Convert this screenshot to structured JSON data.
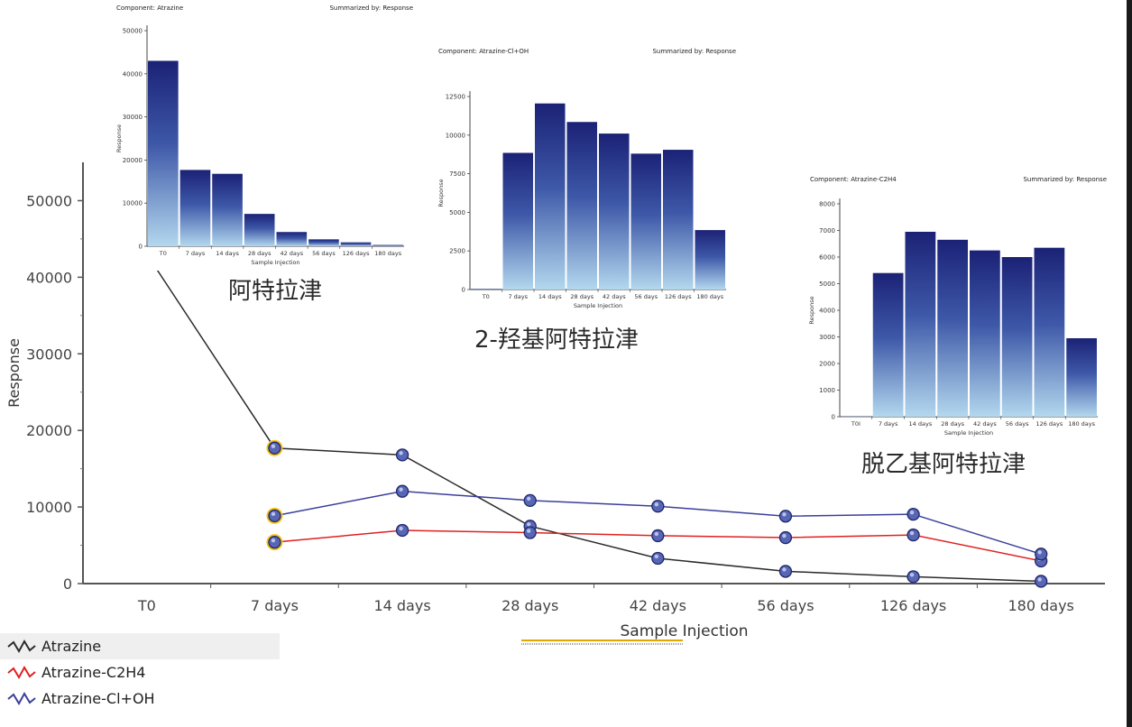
{
  "chart_data": [
    {
      "type": "line",
      "xlabel": "Sample Injection",
      "ylabel": "Response",
      "ylim": [
        0,
        55000
      ],
      "yticks": [
        0,
        10000,
        20000,
        30000,
        40000,
        50000
      ],
      "categories": [
        "T0",
        "7 days",
        "14 days",
        "28 days",
        "42 days",
        "56 days",
        "126 days",
        "180 days"
      ],
      "series": [
        {
          "name": "Atrazine",
          "color": "#2b2b2b",
          "values": [
            43000,
            17700,
            16800,
            7500,
            3300,
            1600,
            900,
            300
          ]
        },
        {
          "name": "Atrazine-C2H4",
          "color": "#e02020",
          "values": [
            null,
            5400,
            6950,
            6650,
            6250,
            6000,
            6350,
            2950
          ]
        },
        {
          "name": "Atrazine-Cl+OH",
          "color": "#3a3f9a",
          "values": [
            null,
            8850,
            12050,
            10850,
            10100,
            8800,
            9050,
            3850
          ]
        }
      ],
      "highlighted_category": "7 days",
      "legend": "bottom-left",
      "grid": false
    },
    {
      "type": "bar",
      "component_label": "Component: Atrazine",
      "summary_label": "Summarized by: Response",
      "xlabel": "Sample Injection",
      "ylabel": "Response",
      "ylim": [
        0,
        50000
      ],
      "yticks": [
        0,
        10000,
        20000,
        30000,
        40000,
        50000
      ],
      "categories": [
        "T0",
        "7 days",
        "14 days",
        "28 days",
        "42 days",
        "56 days",
        "126 days",
        "180 days"
      ],
      "values": [
        43000,
        17700,
        16800,
        7500,
        3300,
        1600,
        900,
        300
      ],
      "caption": "阿特拉津"
    },
    {
      "type": "bar",
      "component_label": "Component: Atrazine-Cl+OH",
      "summary_label": "Summarized by: Response",
      "xlabel": "Sample Injection",
      "ylabel": "Response",
      "ylim": [
        0,
        12500
      ],
      "yticks": [
        0,
        2500,
        5000,
        7500,
        10000,
        12500
      ],
      "categories": [
        "T0",
        "7 days",
        "14 days",
        "28 days",
        "42 days",
        "56 days",
        "126 days",
        "180 days"
      ],
      "values": [
        50,
        8850,
        12050,
        10850,
        10100,
        8800,
        9050,
        3850
      ],
      "caption": "2-羟基阿特拉津"
    },
    {
      "type": "bar",
      "component_label": "Component: Atrazine-C2H4",
      "summary_label": "Summarized by: Response",
      "xlabel": "Sample Injection",
      "ylabel": "Response",
      "ylim": [
        0,
        8000
      ],
      "yticks": [
        0,
        1000,
        2000,
        3000,
        4000,
        5000,
        6000,
        7000,
        8000
      ],
      "categories": [
        "T0I",
        "7 days",
        "14 days",
        "28 days",
        "42 days",
        "56 days",
        "126 days",
        "180 days"
      ],
      "values": [
        0,
        5400,
        6950,
        6650,
        6250,
        6000,
        6350,
        2950
      ],
      "caption": "脱乙基阿特拉津"
    }
  ],
  "legend": {
    "items": [
      {
        "label": "Atrazine",
        "color": "#2b2b2b"
      },
      {
        "label": "Atrazine-C2H4",
        "color": "#e02020"
      },
      {
        "label": "Atrazine-Cl+OH",
        "color": "#3a3f9a"
      }
    ]
  }
}
